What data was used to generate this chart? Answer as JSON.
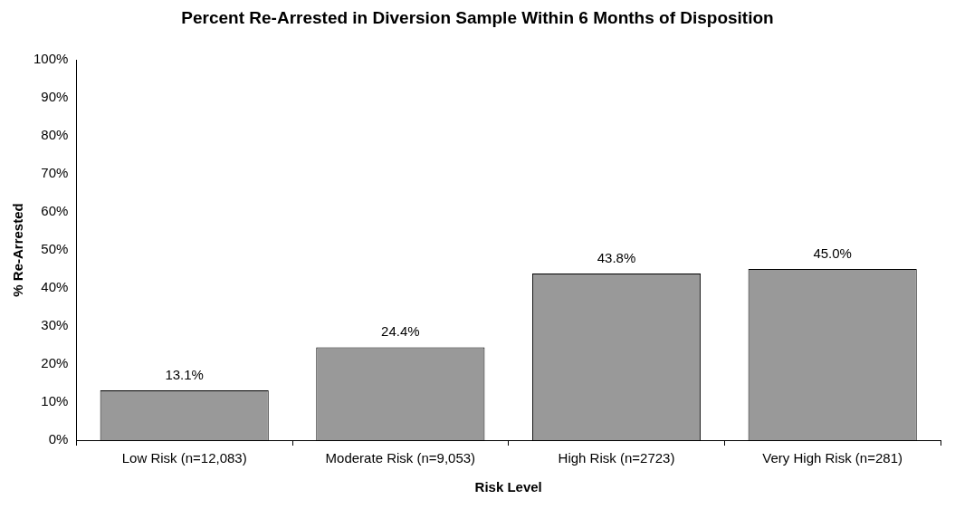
{
  "chart_data": {
    "type": "bar",
    "title": "Percent Re-Arrested in Diversion Sample Within 6 Months of Disposition",
    "xlabel": "Risk Level",
    "ylabel": "% Re-Arrested",
    "categories": [
      "Low Risk (n=12,083)",
      "Moderate Risk (n=9,053)",
      "High Risk (n=2723)",
      "Very High Risk (n=281)"
    ],
    "values": [
      13.1,
      24.4,
      43.8,
      45.0
    ],
    "value_labels": [
      "13.1%",
      "24.4%",
      "43.8%",
      "45.0%"
    ],
    "color": "#999999",
    "ylim": [
      0,
      100
    ],
    "yticks": [
      {
        "value": 0,
        "label": "0%"
      },
      {
        "value": 10,
        "label": "10%"
      },
      {
        "value": 20,
        "label": "20%"
      },
      {
        "value": 30,
        "label": "30%"
      },
      {
        "value": 40,
        "label": "40%"
      },
      {
        "value": 50,
        "label": "50%"
      },
      {
        "value": 60,
        "label": "60%"
      },
      {
        "value": 70,
        "label": "70%"
      },
      {
        "value": 80,
        "label": "80%"
      },
      {
        "value": 90,
        "label": "90%"
      },
      {
        "value": 100,
        "label": "100%"
      }
    ],
    "grid": false,
    "legend": false
  }
}
